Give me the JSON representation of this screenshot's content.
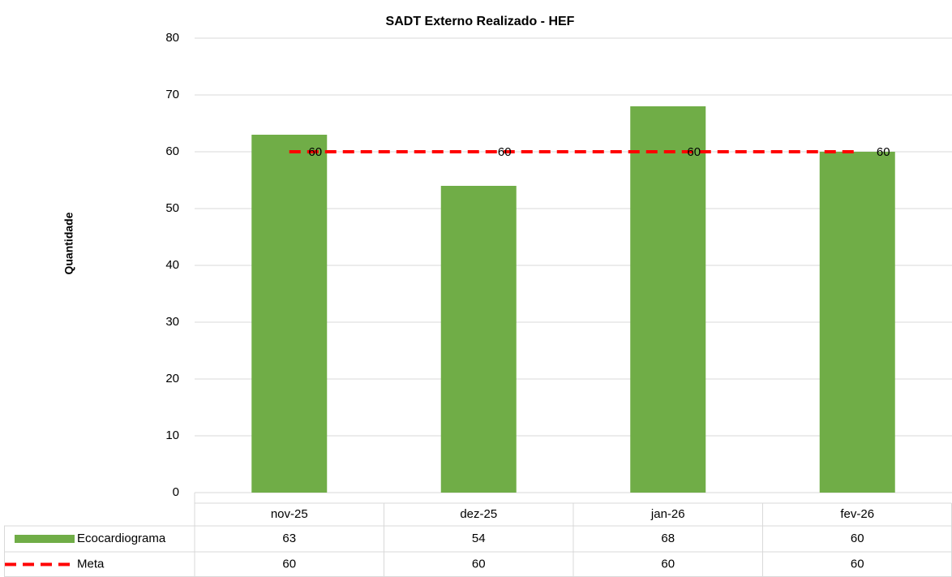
{
  "chart_data": {
    "type": "bar",
    "title": "SADT Externo Realizado - HEF",
    "y_label": "Quantidade",
    "categories": [
      "nov-25",
      "dez-25",
      "jan-26",
      "fev-26"
    ],
    "series": [
      {
        "name": "Ecocardiograma",
        "type": "bar",
        "color": "#70ad47",
        "values": [
          63,
          54,
          68,
          60
        ]
      },
      {
        "name": "Meta",
        "type": "line",
        "color": "#ff0000",
        "dashed": true,
        "values": [
          60,
          60,
          60,
          60
        ]
      }
    ],
    "ylim": [
      0,
      80
    ],
    "yticks": [
      0,
      10,
      20,
      30,
      40,
      50,
      60,
      70,
      80
    ],
    "grid": true,
    "data_table": true
  }
}
